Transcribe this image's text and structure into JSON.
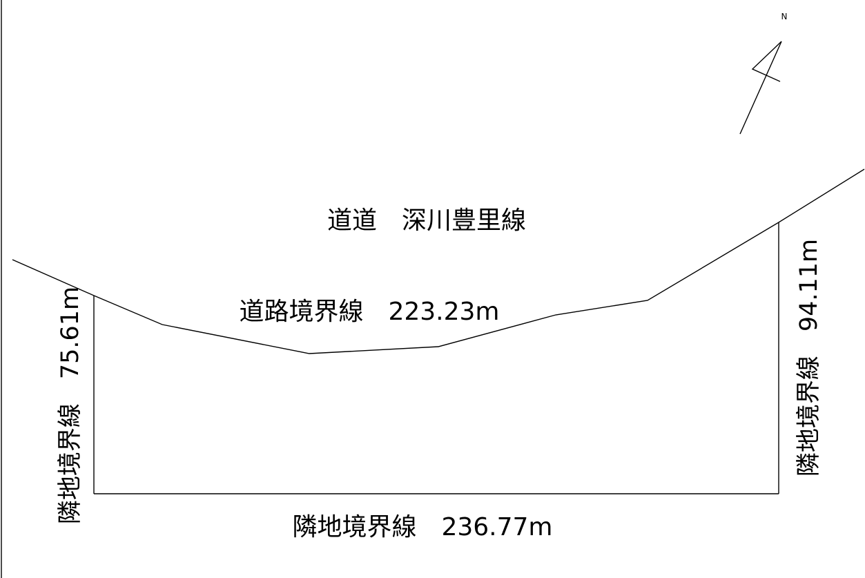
{
  "north_label": "N",
  "road_name": "道道　深川豊里線",
  "road_boundary": "道路境界線　223.23m",
  "bottom_boundary": "隣地境界線　236.77m",
  "left_boundary": "隣地境界線　75.61m",
  "right_boundary": "隣地境界線　94.11m"
}
